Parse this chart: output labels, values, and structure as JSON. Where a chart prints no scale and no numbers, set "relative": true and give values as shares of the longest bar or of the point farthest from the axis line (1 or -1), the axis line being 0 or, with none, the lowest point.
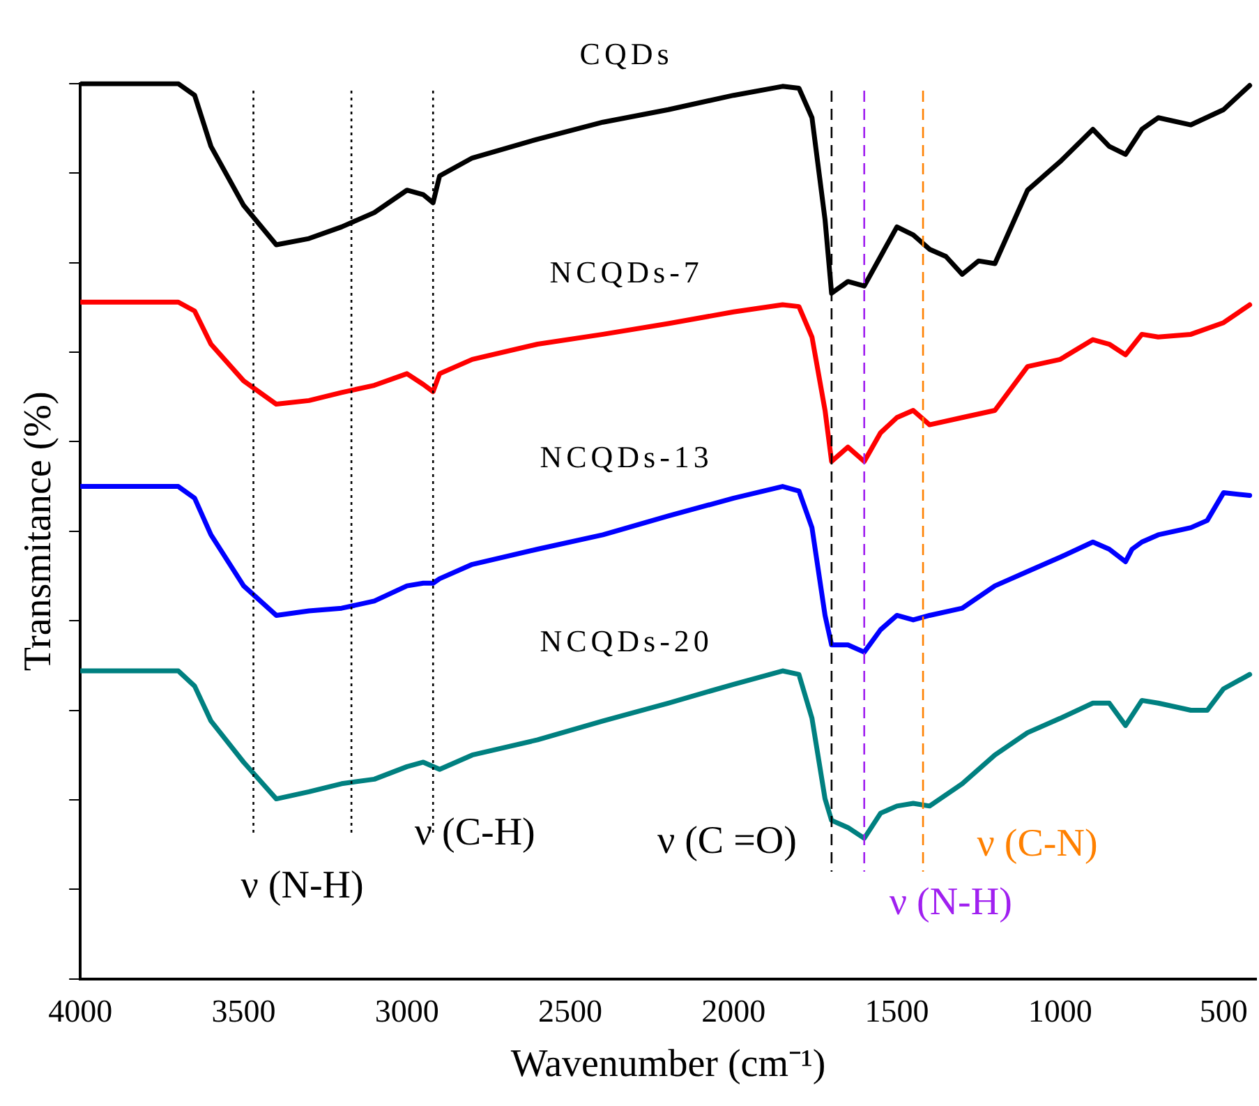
{
  "chart_data": {
    "type": "line",
    "relative": true,
    "xlabel": "Wavenumber (cm⁻¹)",
    "ylabel": "Transmitance (%)",
    "xlim": [
      4000,
      400
    ],
    "xticks": [
      4000,
      3500,
      3000,
      2500,
      2000,
      1500,
      1000,
      500
    ],
    "tick_labels": "x",
    "grid": false,
    "legend": false,
    "marker": "none",
    "line_style": "solid",
    "series": [
      {
        "name": "CQDs",
        "color": "#000000",
        "x": [
          4000,
          3700,
          3650,
          3600,
          3500,
          3400,
          3300,
          3200,
          3100,
          3000,
          2950,
          2920,
          2900,
          2800,
          2600,
          2400,
          2200,
          2000,
          1850,
          1800,
          1760,
          1720,
          1700,
          1650,
          1600,
          1550,
          1500,
          1450,
          1400,
          1350,
          1300,
          1250,
          1200,
          1100,
          1050,
          1000,
          900,
          850,
          800,
          750,
          700,
          600,
          500,
          420
        ],
        "values": [
          1.0,
          1.0,
          0.987,
          0.93,
          0.864,
          0.82,
          0.827,
          0.84,
          0.856,
          0.881,
          0.876,
          0.867,
          0.897,
          0.917,
          0.938,
          0.957,
          0.971,
          0.987,
          0.997,
          0.995,
          0.962,
          0.848,
          0.766,
          0.779,
          0.774,
          0.807,
          0.84,
          0.831,
          0.815,
          0.807,
          0.787,
          0.802,
          0.799,
          0.881,
          0.897,
          0.913,
          0.949,
          0.93,
          0.921,
          0.949,
          0.962,
          0.954,
          0.971,
          0.998
        ]
      },
      {
        "name": "NCQDs-7",
        "color": "#ff0000",
        "x": [
          4000,
          3700,
          3650,
          3600,
          3500,
          3400,
          3300,
          3200,
          3100,
          3000,
          2950,
          2920,
          2900,
          2800,
          2600,
          2400,
          2200,
          2000,
          1850,
          1800,
          1760,
          1720,
          1700,
          1650,
          1600,
          1550,
          1500,
          1450,
          1400,
          1300,
          1200,
          1100,
          1000,
          900,
          850,
          800,
          750,
          700,
          600,
          500,
          420
        ],
        "values": [
          0.756,
          0.756,
          0.746,
          0.709,
          0.668,
          0.642,
          0.646,
          0.655,
          0.663,
          0.676,
          0.664,
          0.656,
          0.676,
          0.692,
          0.709,
          0.72,
          0.732,
          0.745,
          0.753,
          0.751,
          0.717,
          0.635,
          0.578,
          0.594,
          0.578,
          0.61,
          0.627,
          0.635,
          0.619,
          0.627,
          0.635,
          0.684,
          0.692,
          0.714,
          0.709,
          0.697,
          0.72,
          0.717,
          0.72,
          0.733,
          0.753
        ]
      },
      {
        "name": "NCQDs-13",
        "color": "#0000ff",
        "x": [
          4000,
          3700,
          3650,
          3600,
          3500,
          3400,
          3300,
          3200,
          3100,
          3000,
          2950,
          2920,
          2900,
          2800,
          2600,
          2400,
          2200,
          2000,
          1850,
          1800,
          1760,
          1720,
          1700,
          1650,
          1600,
          1550,
          1500,
          1450,
          1400,
          1300,
          1200,
          1100,
          1000,
          900,
          850,
          800,
          780,
          750,
          700,
          600,
          550,
          500,
          420
        ],
        "values": [
          0.55,
          0.55,
          0.537,
          0.496,
          0.439,
          0.406,
          0.411,
          0.414,
          0.422,
          0.439,
          0.442,
          0.442,
          0.447,
          0.463,
          0.48,
          0.496,
          0.517,
          0.537,
          0.55,
          0.545,
          0.504,
          0.406,
          0.373,
          0.373,
          0.365,
          0.39,
          0.406,
          0.401,
          0.406,
          0.414,
          0.439,
          0.455,
          0.471,
          0.488,
          0.48,
          0.466,
          0.48,
          0.488,
          0.496,
          0.504,
          0.512,
          0.543,
          0.54
        ]
      },
      {
        "name": "NCQDs-20",
        "color": "#008080",
        "x": [
          4000,
          3700,
          3650,
          3600,
          3500,
          3400,
          3300,
          3200,
          3100,
          3000,
          2950,
          2900,
          2800,
          2600,
          2400,
          2200,
          2000,
          1850,
          1800,
          1760,
          1720,
          1700,
          1650,
          1600,
          1550,
          1500,
          1450,
          1400,
          1300,
          1200,
          1100,
          1000,
          900,
          850,
          800,
          750,
          700,
          600,
          550,
          500,
          420
        ],
        "values": [
          0.344,
          0.344,
          0.327,
          0.288,
          0.242,
          0.201,
          0.209,
          0.218,
          0.223,
          0.237,
          0.242,
          0.234,
          0.25,
          0.267,
          0.288,
          0.308,
          0.329,
          0.344,
          0.34,
          0.291,
          0.201,
          0.177,
          0.169,
          0.157,
          0.185,
          0.193,
          0.196,
          0.193,
          0.218,
          0.25,
          0.275,
          0.291,
          0.308,
          0.308,
          0.283,
          0.311,
          0.308,
          0.3,
          0.3,
          0.324,
          0.34
        ]
      }
    ],
    "ref_lines": [
      {
        "axis": "x",
        "value": 3470,
        "color": "#000000",
        "line_style": "dotted",
        "label": "ν (N-H)"
      },
      {
        "axis": "x",
        "value": 3170,
        "color": "#000000",
        "line_style": "dotted"
      },
      {
        "axis": "x",
        "value": 2920,
        "color": "#000000",
        "line_style": "dotted",
        "label": "ν (C-H)"
      },
      {
        "axis": "x",
        "value": 1700,
        "color": "#000000",
        "line_style": "dashed",
        "label": "ν (C =O)"
      },
      {
        "axis": "x",
        "value": 1600,
        "color": "#a020f0",
        "line_style": "dashed",
        "label": "ν (N-H)"
      },
      {
        "axis": "x",
        "value": 1420,
        "color": "#ff8000",
        "line_style": "dashed",
        "label": "ν (C-N)"
      }
    ]
  }
}
